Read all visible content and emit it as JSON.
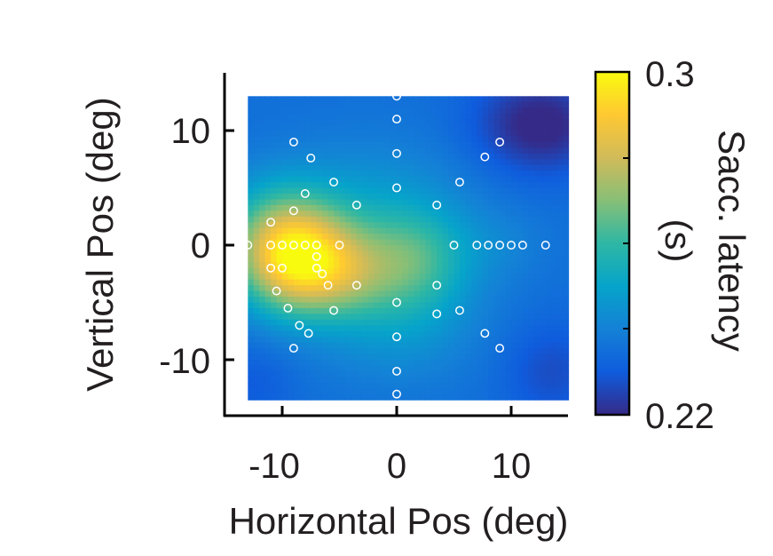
{
  "chart_data": {
    "type": "heatmap",
    "xlabel": "Horizontal Pos (deg)",
    "ylabel": "Vertical Pos (deg)",
    "xlim": [
      -15,
      15
    ],
    "ylim": [
      -15,
      15
    ],
    "xticks": [
      -10,
      0,
      10
    ],
    "yticks": [
      -10,
      0,
      10
    ],
    "xtick_labels": [
      "-10",
      "0",
      "10"
    ],
    "ytick_labels": [
      "-10",
      "0",
      "10"
    ],
    "map_extent": {
      "x": [
        -13,
        15
      ],
      "y": [
        -13,
        13
      ]
    },
    "colorbar": {
      "label": "Sacc. latency (s)",
      "label_main": "Sacc. latency",
      "label_unit": "(s)",
      "min": 0.22,
      "max": 0.3,
      "min_label": "0.22",
      "max_label": "0.3",
      "colormap": "parula",
      "colormap_stops": [
        "#352a87",
        "#0f5cdd",
        "#1481d6",
        "#06a4ca",
        "#2eb7a4",
        "#87bf77",
        "#d1bb59",
        "#fec832",
        "#f9fb0e"
      ]
    },
    "latency_field": {
      "description": "approximate smoothed latency surface (s) sampled on the map grid",
      "baseline": 0.235,
      "bumps": [
        {
          "x": -8.5,
          "y": -1.5,
          "sx": 3.5,
          "sy": 3.2,
          "amp": 0.048
        },
        {
          "x": -10.5,
          "y": 1.0,
          "sx": 3.5,
          "sy": 3.5,
          "amp": 0.02
        },
        {
          "x": -4.0,
          "y": -2.5,
          "sx": 2.8,
          "sy": 2.5,
          "amp": 0.012
        },
        {
          "x": 1.5,
          "y": -1.2,
          "sx": 3.2,
          "sy": 3.0,
          "amp": 0.018
        },
        {
          "x": -2.0,
          "y": 2.5,
          "sx": 6.0,
          "sy": 4.5,
          "amp": 0.012
        },
        {
          "x": 0.0,
          "y": -6.0,
          "sx": 5.0,
          "sy": 4.0,
          "amp": 0.012
        },
        {
          "x": 9.0,
          "y": 0.0,
          "sx": 3.0,
          "sy": 2.2,
          "amp": 0.004
        },
        {
          "x": 12.5,
          "y": 10.5,
          "sx": 4.0,
          "sy": 3.0,
          "amp": -0.017
        },
        {
          "x": 13.5,
          "y": -11.0,
          "sx": 3.0,
          "sy": 3.0,
          "amp": -0.008
        },
        {
          "x": -12.5,
          "y": -12.0,
          "sx": 2.5,
          "sy": 2.5,
          "amp": -0.005
        }
      ]
    },
    "target_points": [
      {
        "x": -13,
        "y": 0
      },
      {
        "x": -11,
        "y": 0
      },
      {
        "x": -10,
        "y": 0
      },
      {
        "x": -9,
        "y": 0
      },
      {
        "x": -8,
        "y": 0
      },
      {
        "x": -7,
        "y": 0
      },
      {
        "x": -5,
        "y": 0
      },
      {
        "x": -11,
        "y": -2
      },
      {
        "x": -10,
        "y": -2
      },
      {
        "x": -7,
        "y": -2
      },
      {
        "x": -6.5,
        "y": -2.5
      },
      {
        "x": -7,
        "y": -1
      },
      {
        "x": -11,
        "y": 2
      },
      {
        "x": -9,
        "y": 3
      },
      {
        "x": -8,
        "y": 4.5
      },
      {
        "x": -7.5,
        "y": 7.6
      },
      {
        "x": -9,
        "y": 9
      },
      {
        "x": -5.5,
        "y": 5.5
      },
      {
        "x": -3.5,
        "y": 3.5
      },
      {
        "x": -6,
        "y": -3.5
      },
      {
        "x": -10.5,
        "y": -4
      },
      {
        "x": -5.5,
        "y": -5.7
      },
      {
        "x": -3.5,
        "y": -3.5
      },
      {
        "x": -9.5,
        "y": -5.5
      },
      {
        "x": -8.5,
        "y": -7
      },
      {
        "x": -7.7,
        "y": -7.7
      },
      {
        "x": -9,
        "y": -9
      },
      {
        "x": 0,
        "y": 13
      },
      {
        "x": 0,
        "y": 11
      },
      {
        "x": 0,
        "y": 8
      },
      {
        "x": 0,
        "y": 5
      },
      {
        "x": 0,
        "y": -5
      },
      {
        "x": 0,
        "y": -8
      },
      {
        "x": 0,
        "y": -11
      },
      {
        "x": 0,
        "y": -13
      },
      {
        "x": 3.5,
        "y": 3.5
      },
      {
        "x": 5.5,
        "y": 5.5
      },
      {
        "x": 7.7,
        "y": 7.7
      },
      {
        "x": 9,
        "y": 9
      },
      {
        "x": 3.5,
        "y": -3.5
      },
      {
        "x": 3.5,
        "y": -6
      },
      {
        "x": 5.5,
        "y": -5.7
      },
      {
        "x": 7.7,
        "y": -7.7
      },
      {
        "x": 9,
        "y": -9
      },
      {
        "x": 5,
        "y": 0
      },
      {
        "x": 7,
        "y": 0
      },
      {
        "x": 8,
        "y": 0
      },
      {
        "x": 9,
        "y": 0
      },
      {
        "x": 10,
        "y": 0
      },
      {
        "x": 11,
        "y": 0
      },
      {
        "x": 13,
        "y": 0
      }
    ]
  }
}
